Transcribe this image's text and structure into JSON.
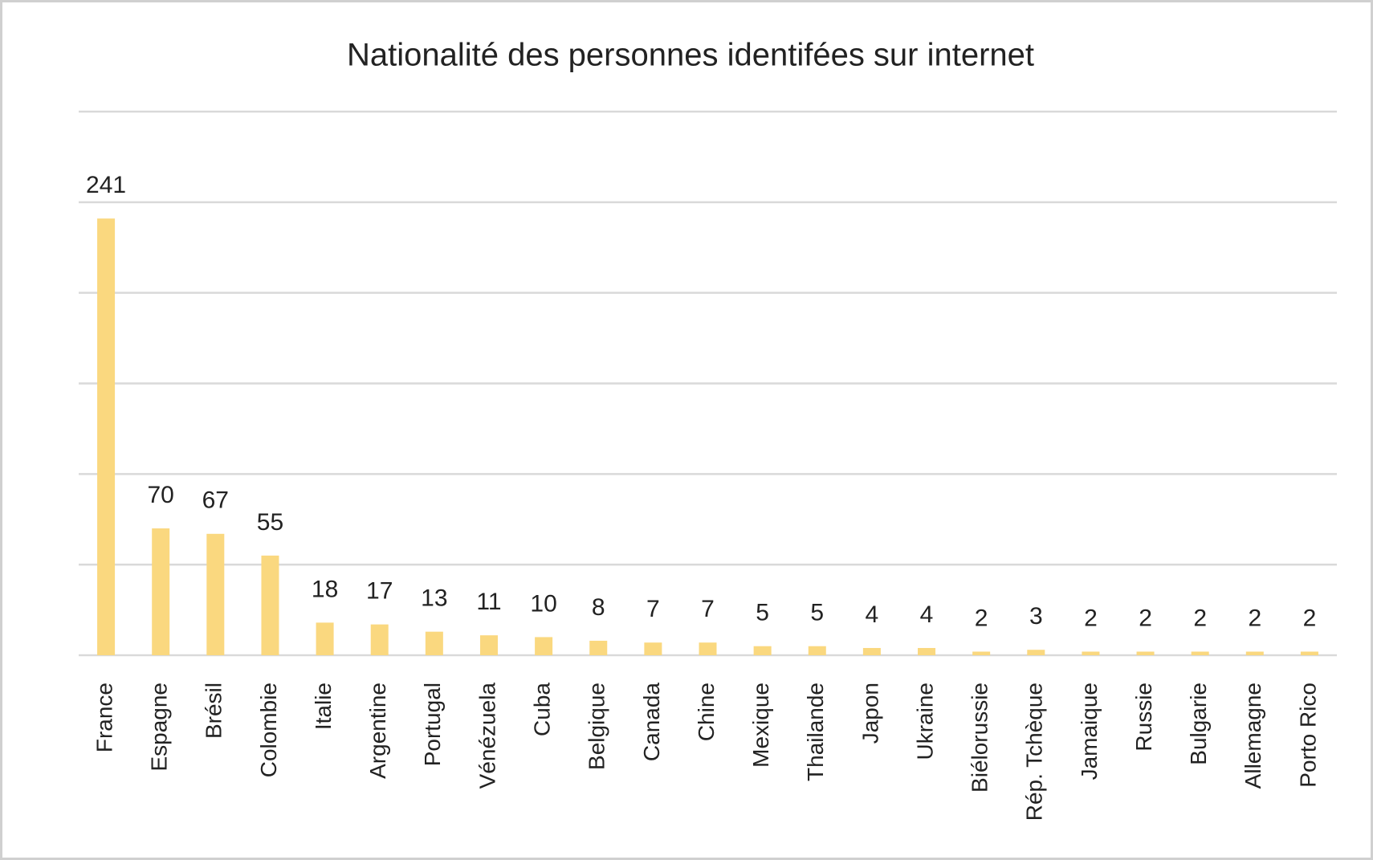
{
  "chart_data": {
    "type": "bar",
    "title": "Nationalité des personnes identifées sur internet",
    "categories": [
      "France",
      "Espagne",
      "Brésil",
      "Colombie",
      "Italie",
      "Argentine",
      "Portugal",
      "Vénézuela",
      "Cuba",
      "Belgique",
      "Canada",
      "Chine",
      "Mexique",
      "Thailande",
      "Japon",
      "Ukraine",
      "Biélorussie",
      "Rép. Tchèque",
      "Jamaique",
      "Russie",
      "Bulgarie",
      "Allemagne",
      "Porto Rico"
    ],
    "values": [
      241,
      70,
      67,
      55,
      18,
      17,
      13,
      11,
      10,
      8,
      7,
      7,
      5,
      5,
      4,
      4,
      2,
      3,
      2,
      2,
      2,
      2,
      2
    ],
    "color": "#fad87f",
    "ylim": [
      0,
      300
    ],
    "yticks": [
      0,
      50,
      100,
      150,
      200,
      250,
      300
    ],
    "grid": true,
    "ytick_labels": false
  }
}
